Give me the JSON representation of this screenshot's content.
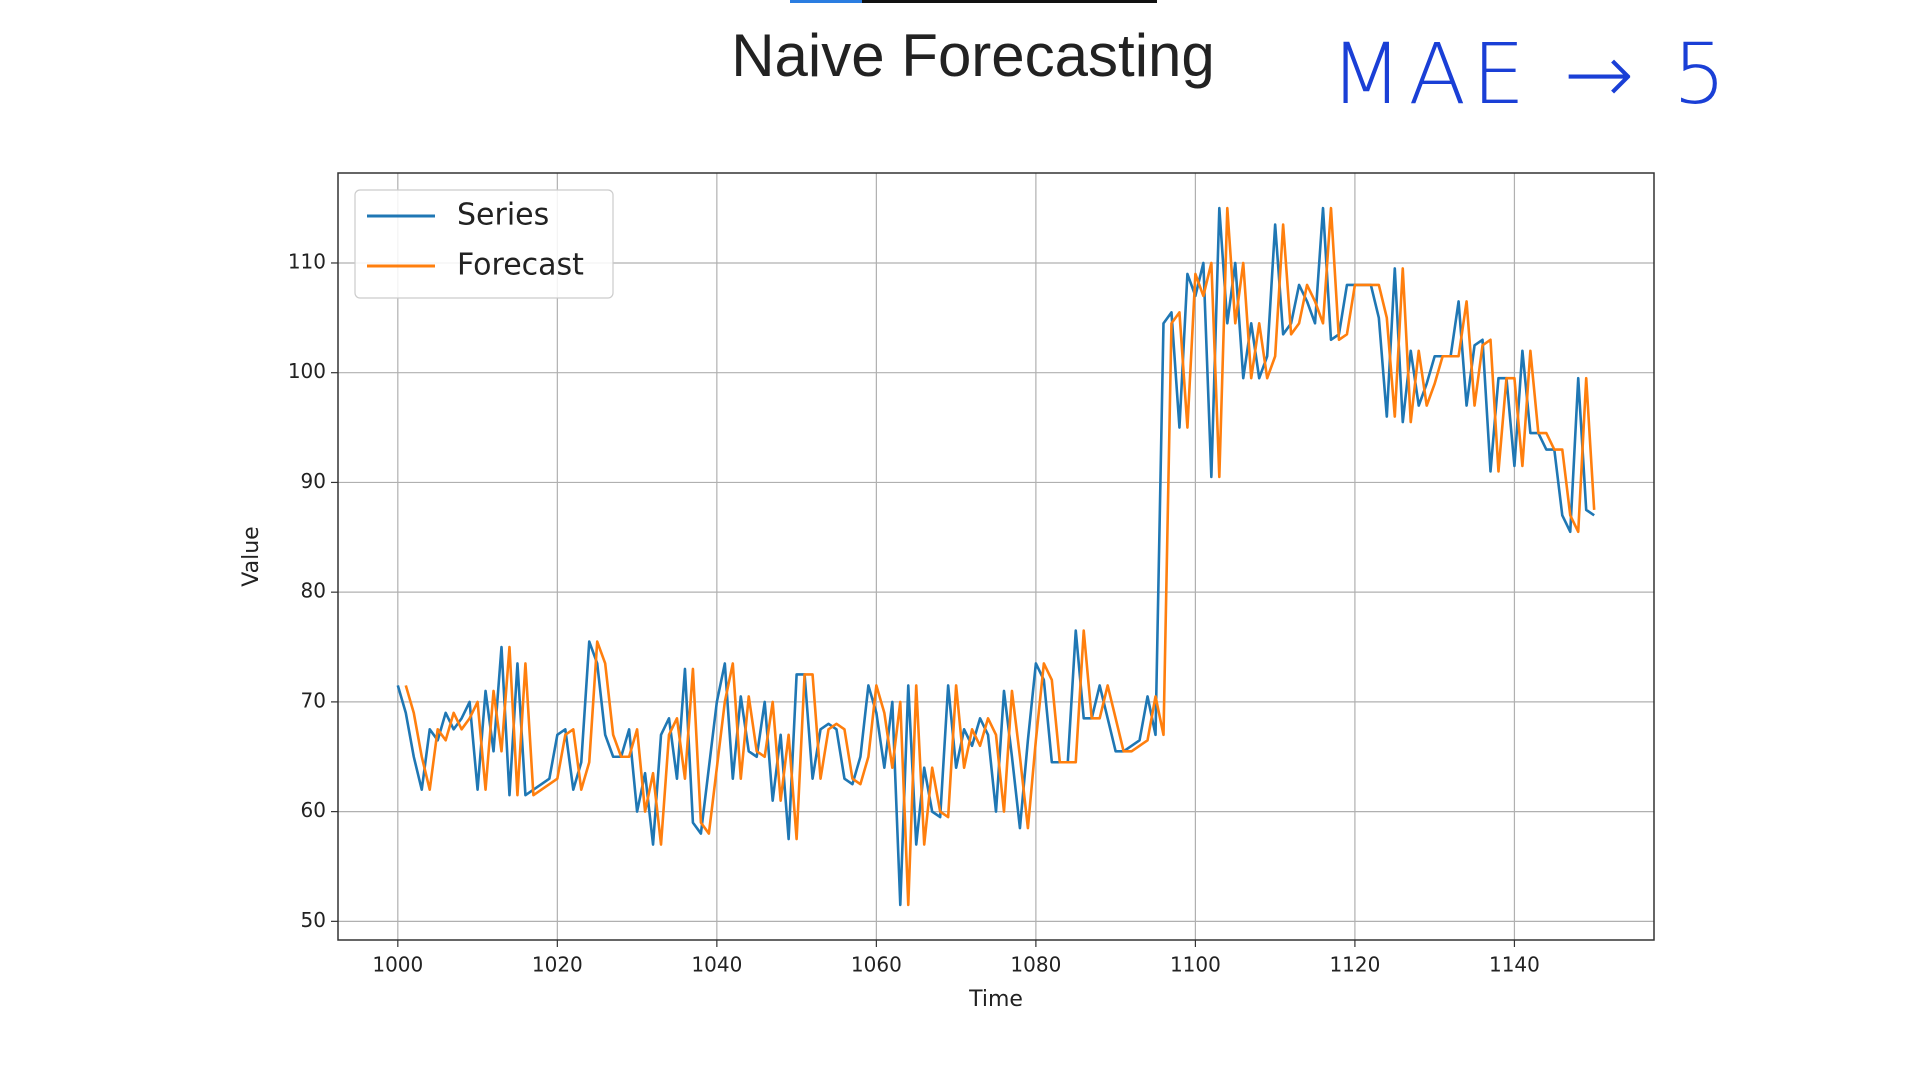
{
  "chart_data": {
    "type": "line",
    "title": "Naive Forecasting",
    "annotation": "MAE → 5",
    "xlabel": "Time",
    "ylabel": "Value",
    "x": [
      1000,
      1001,
      1002,
      1003,
      1004,
      1005,
      1006,
      1007,
      1008,
      1009,
      1010,
      1011,
      1012,
      1013,
      1014,
      1015,
      1016,
      1017,
      1018,
      1019,
      1020,
      1021,
      1022,
      1023,
      1024,
      1025,
      1026,
      1027,
      1028,
      1029,
      1030,
      1031,
      1032,
      1033,
      1034,
      1035,
      1036,
      1037,
      1038,
      1039,
      1040,
      1041,
      1042,
      1043,
      1044,
      1045,
      1046,
      1047,
      1048,
      1049,
      1050,
      1051,
      1052,
      1053,
      1054,
      1055,
      1056,
      1057,
      1058,
      1059,
      1060,
      1061,
      1062,
      1063,
      1064,
      1065,
      1066,
      1067,
      1068,
      1069,
      1070,
      1071,
      1072,
      1073,
      1074,
      1075,
      1076,
      1077,
      1078,
      1079,
      1080,
      1081,
      1082,
      1083,
      1084,
      1085,
      1086,
      1087,
      1088,
      1089,
      1090,
      1091,
      1092,
      1093,
      1094,
      1095,
      1096,
      1097,
      1098,
      1099,
      1100,
      1101,
      1102,
      1103,
      1104,
      1105,
      1106,
      1107,
      1108,
      1109,
      1110,
      1111,
      1112,
      1113,
      1114,
      1115,
      1116,
      1117,
      1118,
      1119,
      1120,
      1121,
      1122,
      1123,
      1124,
      1125,
      1126,
      1127,
      1128,
      1129,
      1130,
      1131,
      1132,
      1133,
      1134,
      1135,
      1136,
      1137,
      1138,
      1139,
      1140,
      1141,
      1142,
      1143,
      1144,
      1145,
      1146,
      1147,
      1148,
      1149,
      1150
    ],
    "series": [
      {
        "name": "Series",
        "color": "#1f77b4",
        "values": [
          71.5,
          69,
          65,
          62,
          67.5,
          66.5,
          69,
          67.5,
          68.5,
          70,
          62,
          71,
          65.5,
          75,
          61.5,
          73.5,
          61.5,
          62,
          62.5,
          63,
          67,
          67.5,
          62,
          64.5,
          75.5,
          73.5,
          67,
          65,
          65,
          67.5,
          60,
          63.5,
          57,
          67,
          68.5,
          63,
          73,
          59,
          58,
          64,
          70,
          73.5,
          63,
          70.5,
          65.5,
          65,
          70,
          61,
          67,
          57.5,
          72.5,
          72.5,
          63,
          67.5,
          68,
          67.5,
          63,
          62.5,
          65,
          71.5,
          69,
          64,
          70,
          51.5,
          71.5,
          57,
          64,
          60,
          59.5,
          71.5,
          64,
          67.5,
          66,
          68.5,
          67,
          60,
          71,
          65,
          58.5,
          66.5,
          73.5,
          72,
          64.5,
          64.5,
          64.5,
          76.5,
          68.5,
          68.5,
          71.5,
          68.5,
          65.5,
          65.5,
          66,
          66.5,
          70.5,
          67,
          104.5,
          105.5,
          95,
          109,
          107,
          110,
          90.5,
          115,
          104.5,
          110,
          99.5,
          104.5,
          99.5,
          101.5,
          113.5,
          103.5,
          104.5,
          108,
          106.5,
          104.5,
          115,
          103,
          103.5,
          108,
          108,
          108,
          108,
          105,
          96,
          109.5,
          95.5,
          102,
          97,
          99,
          101.5,
          101.5,
          101.5,
          106.5,
          97,
          102.5,
          103,
          91,
          99.5,
          99.5,
          91.5,
          102,
          94.5,
          94.5,
          93,
          93,
          87,
          85.5,
          99.5,
          87.5,
          87
        ]
      },
      {
        "name": "Forecast",
        "color": "#ff7f0e",
        "values": [
          null,
          71.5,
          69,
          65,
          62,
          67.5,
          66.5,
          69,
          67.5,
          68.5,
          70,
          62,
          71,
          65.5,
          75,
          61.5,
          73.5,
          61.5,
          62,
          62.5,
          63,
          67,
          67.5,
          62,
          64.5,
          75.5,
          73.5,
          67,
          65,
          65,
          67.5,
          60,
          63.5,
          57,
          67,
          68.5,
          63,
          73,
          59,
          58,
          64,
          70,
          73.5,
          63,
          70.5,
          65.5,
          65,
          70,
          61,
          67,
          57.5,
          72.5,
          72.5,
          63,
          67.5,
          68,
          67.5,
          63,
          62.5,
          65,
          71.5,
          69,
          64,
          70,
          51.5,
          71.5,
          57,
          64,
          60,
          59.5,
          71.5,
          64,
          67.5,
          66,
          68.5,
          67,
          60,
          71,
          65,
          58.5,
          66.5,
          73.5,
          72,
          64.5,
          64.5,
          64.5,
          76.5,
          68.5,
          68.5,
          71.5,
          68.5,
          65.5,
          65.5,
          66,
          66.5,
          70.5,
          67,
          104.5,
          105.5,
          95,
          109,
          107,
          110,
          90.5,
          115,
          104.5,
          110,
          99.5,
          104.5,
          99.5,
          101.5,
          113.5,
          103.5,
          104.5,
          108,
          106.5,
          104.5,
          115,
          103,
          103.5,
          108,
          108,
          108,
          108,
          105,
          96,
          109.5,
          95.5,
          102,
          97,
          99,
          101.5,
          101.5,
          101.5,
          106.5,
          97,
          102.5,
          103,
          91,
          99.5,
          99.5,
          91.5,
          102,
          94.5,
          94.5,
          93,
          93,
          87,
          85.5,
          99.5,
          87.5
        ]
      }
    ],
    "xlim": [
      992.5,
      1157.5
    ],
    "ylim": [
      48.3,
      118.2
    ],
    "xticks": [
      1000,
      1020,
      1040,
      1060,
      1080,
      1100,
      1120,
      1140
    ],
    "yticks": [
      50,
      60,
      70,
      80,
      90,
      100,
      110
    ],
    "grid": true,
    "legend": "upper left"
  }
}
